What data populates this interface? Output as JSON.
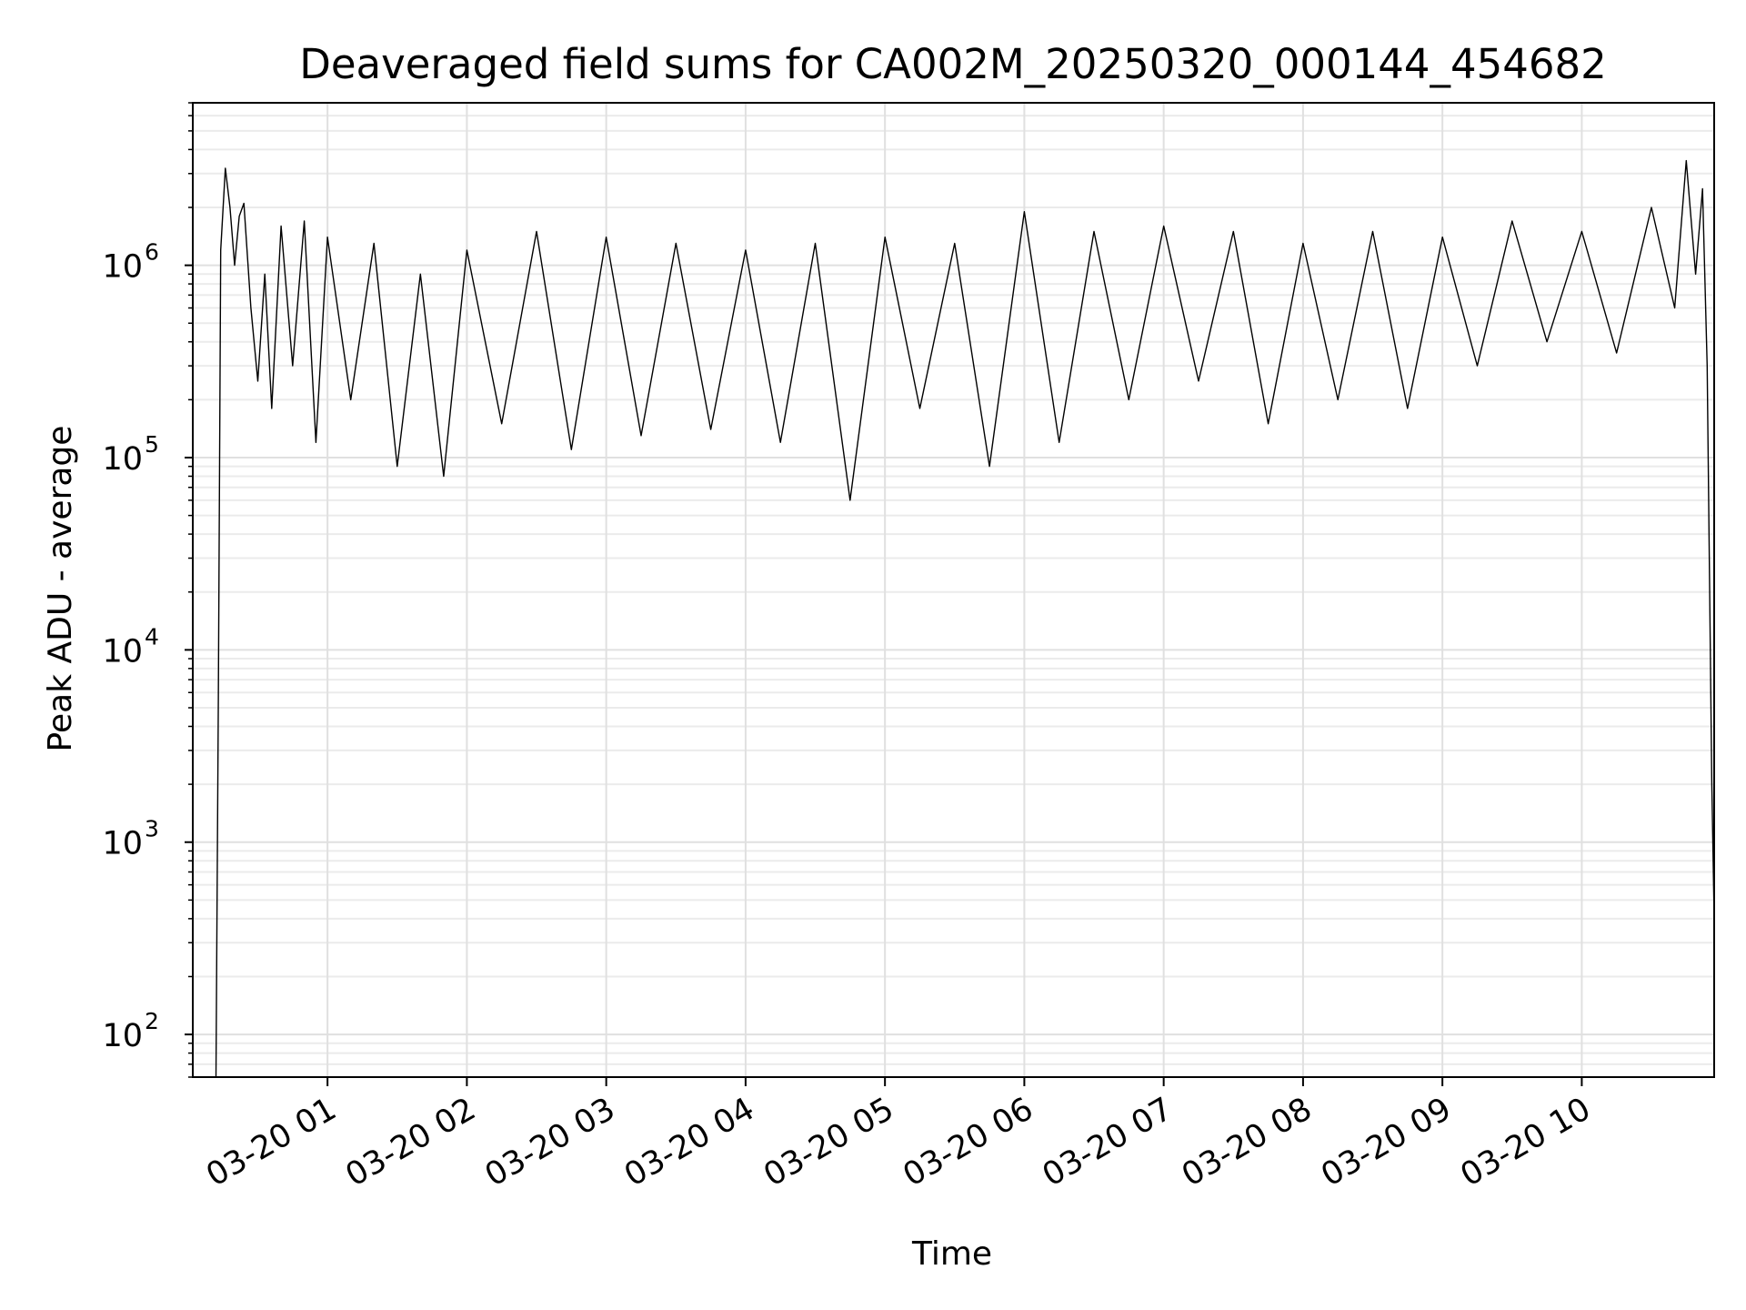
{
  "chart_data": {
    "type": "line",
    "title": "Deaveraged field sums for CA002M_20250320_000144_454682",
    "xlabel": "Time",
    "ylabel": "Peak ADU - average",
    "yscale": "log",
    "ylim": [
      60,
      7000000
    ],
    "xlim": [
      "2025-03-20 00:02",
      "2025-03-20 10:57"
    ],
    "grid": true,
    "x_ticks": [
      {
        "t": "2025-03-20 01:00",
        "label": "03-20 01"
      },
      {
        "t": "2025-03-20 02:00",
        "label": "03-20 02"
      },
      {
        "t": "2025-03-20 03:00",
        "label": "03-20 03"
      },
      {
        "t": "2025-03-20 04:00",
        "label": "03-20 04"
      },
      {
        "t": "2025-03-20 05:00",
        "label": "03-20 05"
      },
      {
        "t": "2025-03-20 06:00",
        "label": "03-20 06"
      },
      {
        "t": "2025-03-20 07:00",
        "label": "03-20 07"
      },
      {
        "t": "2025-03-20 08:00",
        "label": "03-20 08"
      },
      {
        "t": "2025-03-20 09:00",
        "label": "03-20 09"
      },
      {
        "t": "2025-03-20 10:00",
        "label": "03-20 10"
      }
    ],
    "y_ticks": [
      {
        "value": 100,
        "base": "10",
        "exp": "2"
      },
      {
        "value": 1000,
        "base": "10",
        "exp": "3"
      },
      {
        "value": 10000,
        "base": "10",
        "exp": "4"
      },
      {
        "value": 100000,
        "base": "10",
        "exp": "5"
      },
      {
        "value": 1000000,
        "base": "10",
        "exp": "6"
      }
    ],
    "line_color": "#000000",
    "series": [
      {
        "x": [
          "2025-03-20 00:12",
          "2025-03-20 00:13",
          "2025-03-20 00:14",
          "2025-03-20 00:16",
          "2025-03-20 00:18",
          "2025-03-20 00:20",
          "2025-03-20 00:22",
          "2025-03-20 00:24",
          "2025-03-20 00:27",
          "2025-03-20 00:30",
          "2025-03-20 00:33",
          "2025-03-20 00:36",
          "2025-03-20 00:40",
          "2025-03-20 00:45",
          "2025-03-20 00:50",
          "2025-03-20 00:55",
          "2025-03-20 01:00",
          "2025-03-20 01:10",
          "2025-03-20 01:20",
          "2025-03-20 01:30",
          "2025-03-20 01:40",
          "2025-03-20 01:50",
          "2025-03-20 02:00",
          "2025-03-20 02:15",
          "2025-03-20 02:30",
          "2025-03-20 02:45",
          "2025-03-20 03:00",
          "2025-03-20 03:15",
          "2025-03-20 03:30",
          "2025-03-20 03:45",
          "2025-03-20 04:00",
          "2025-03-20 04:15",
          "2025-03-20 04:30",
          "2025-03-20 04:45",
          "2025-03-20 05:00",
          "2025-03-20 05:15",
          "2025-03-20 05:30",
          "2025-03-20 05:45",
          "2025-03-20 06:00",
          "2025-03-20 06:15",
          "2025-03-20 06:30",
          "2025-03-20 06:45",
          "2025-03-20 07:00",
          "2025-03-20 07:15",
          "2025-03-20 07:30",
          "2025-03-20 07:45",
          "2025-03-20 08:00",
          "2025-03-20 08:15",
          "2025-03-20 08:30",
          "2025-03-20 08:45",
          "2025-03-20 09:00",
          "2025-03-20 09:15",
          "2025-03-20 09:30",
          "2025-03-20 09:45",
          "2025-03-20 10:00",
          "2025-03-20 10:15",
          "2025-03-20 10:30",
          "2025-03-20 10:40",
          "2025-03-20 10:45",
          "2025-03-20 10:49",
          "2025-03-20 10:52",
          "2025-03-20 10:54",
          "2025-03-20 10:56",
          "2025-03-20 10:57"
        ],
        "y": [
          60,
          5500,
          1200000,
          3200000,
          2000000,
          1000000,
          1800000,
          2100000,
          600000,
          250000,
          900000,
          180000,
          1600000,
          300000,
          1700000,
          120000,
          1400000,
          200000,
          1300000,
          90000,
          900000,
          80000,
          1200000,
          150000,
          1500000,
          110000,
          1400000,
          130000,
          1300000,
          140000,
          1200000,
          120000,
          1300000,
          60000,
          1400000,
          180000,
          1300000,
          90000,
          1900000,
          120000,
          1500000,
          200000,
          1600000,
          250000,
          1500000,
          150000,
          1300000,
          200000,
          1500000,
          180000,
          1400000,
          300000,
          1700000,
          400000,
          1500000,
          350000,
          2000000,
          600000,
          3500000,
          900000,
          2500000,
          300000,
          2000,
          400
        ]
      }
    ]
  }
}
